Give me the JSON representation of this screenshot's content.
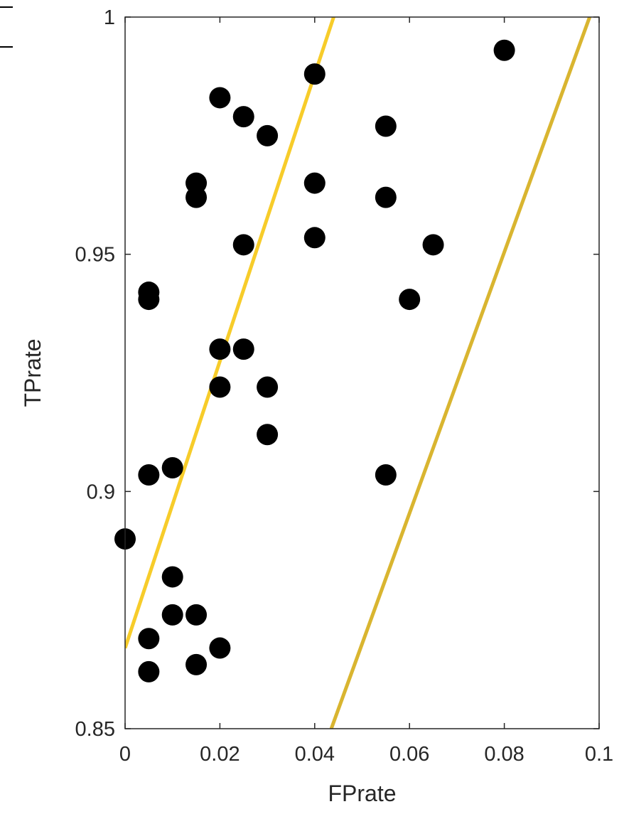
{
  "chart_data": {
    "type": "scatter",
    "xlabel": "FPrate",
    "ylabel": "TPrate",
    "xlim": [
      0,
      0.1
    ],
    "ylim": [
      0.85,
      1
    ],
    "x_ticks": [
      0,
      0.02,
      0.04,
      0.06,
      0.08,
      0.1
    ],
    "x_tick_labels": [
      "0",
      "0.02",
      "0.04",
      "0.06",
      "0.08",
      "0.1"
    ],
    "y_ticks": [
      0.85,
      0.9,
      0.95,
      1
    ],
    "y_tick_labels": [
      "0.85",
      "0.9",
      "0.95",
      "1"
    ],
    "grid": false,
    "legend": "none",
    "point_color": "#000000",
    "points": [
      {
        "x": 0.08,
        "y": 0.993
      },
      {
        "x": 0.04,
        "y": 0.988
      },
      {
        "x": 0.02,
        "y": 0.983
      },
      {
        "x": 0.025,
        "y": 0.979
      },
      {
        "x": 0.03,
        "y": 0.975
      },
      {
        "x": 0.055,
        "y": 0.977
      },
      {
        "x": 0.015,
        "y": 0.965
      },
      {
        "x": 0.015,
        "y": 0.962
      },
      {
        "x": 0.04,
        "y": 0.965
      },
      {
        "x": 0.055,
        "y": 0.962
      },
      {
        "x": 0.025,
        "y": 0.952
      },
      {
        "x": 0.04,
        "y": 0.9535
      },
      {
        "x": 0.065,
        "y": 0.952
      },
      {
        "x": 0.005,
        "y": 0.942
      },
      {
        "x": 0.005,
        "y": 0.9405
      },
      {
        "x": 0.06,
        "y": 0.9405
      },
      {
        "x": 0.02,
        "y": 0.93
      },
      {
        "x": 0.025,
        "y": 0.93
      },
      {
        "x": 0.02,
        "y": 0.922
      },
      {
        "x": 0.03,
        "y": 0.922
      },
      {
        "x": 0.03,
        "y": 0.912
      },
      {
        "x": 0.005,
        "y": 0.9035
      },
      {
        "x": 0.01,
        "y": 0.905
      },
      {
        "x": 0.055,
        "y": 0.9035
      },
      {
        "x": 0.0,
        "y": 0.89
      },
      {
        "x": 0.01,
        "y": 0.882
      },
      {
        "x": 0.01,
        "y": 0.874
      },
      {
        "x": 0.015,
        "y": 0.874
      },
      {
        "x": 0.005,
        "y": 0.869
      },
      {
        "x": 0.02,
        "y": 0.867
      },
      {
        "x": 0.005,
        "y": 0.862
      },
      {
        "x": 0.015,
        "y": 0.8635
      }
    ],
    "lines": [
      {
        "color": "#f7cc2a",
        "points": [
          [
            0,
            0.867
          ],
          [
            0.044,
            1.0
          ]
        ]
      },
      {
        "color": "#d9b530",
        "points": [
          [
            0.0435,
            0.85
          ],
          [
            0.098,
            1.0
          ]
        ]
      }
    ]
  },
  "legend_stub": {
    "color": "#000000"
  }
}
